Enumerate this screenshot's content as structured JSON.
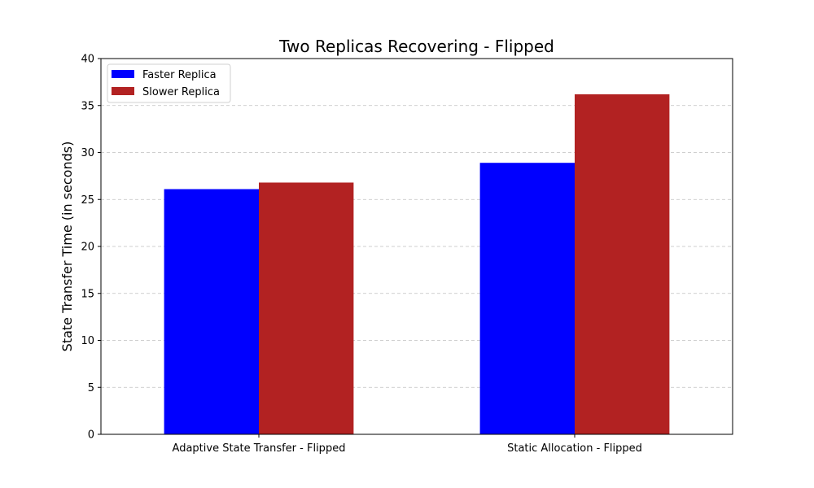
{
  "chart_data": {
    "type": "bar",
    "title": "Two Replicas Recovering - Flipped",
    "xlabel": "",
    "ylabel": "State Transfer Time (in seconds)",
    "categories": [
      "Adaptive State Transfer - Flipped",
      "Static Allocation - Flipped"
    ],
    "series": [
      {
        "name": "Faster Replica",
        "values": [
          26.1,
          28.9
        ],
        "color": "#0000ff"
      },
      {
        "name": "Slower Replica",
        "values": [
          26.8,
          36.2
        ],
        "color": "#b22222"
      }
    ],
    "ylim": [
      0,
      40
    ],
    "yticks": [
      "0",
      "5",
      "10",
      "15",
      "20",
      "25",
      "30",
      "35",
      "40"
    ],
    "grid": {
      "y": true,
      "style": "dashed",
      "color": "#c0c0c0"
    },
    "legend": {
      "position": "top-left"
    }
  }
}
